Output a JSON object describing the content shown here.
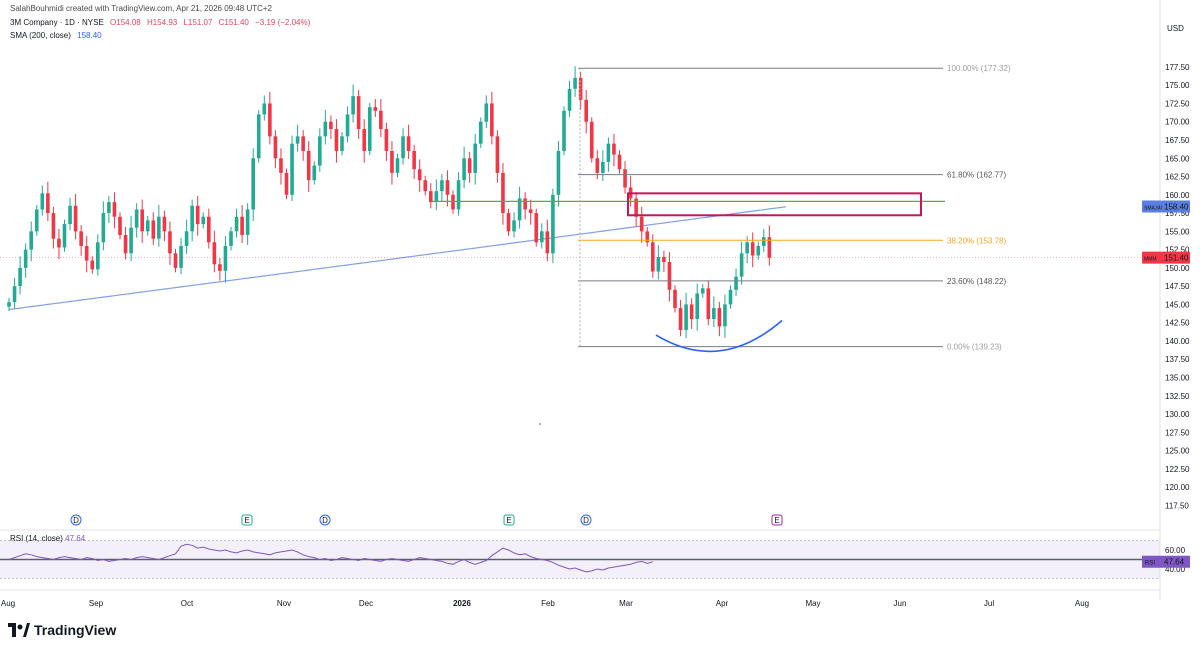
{
  "header": {
    "author_line": "SalahBouhmidi created with TradingView.com, Apr 21, 2026 09:48 UTC+2",
    "symbol": "3M Company · 1D · NYSE",
    "ohlc": {
      "o": "O154.08",
      "h": "H154.93",
      "l": "L151.07",
      "c": "C151.40",
      "chg": "−3.19 (−2.04%)"
    },
    "sma_label": "SMA (200, close)",
    "sma_value": "158.40",
    "rsi_label": "RSI (14, close)",
    "rsi_value": "47.64"
  },
  "brand": {
    "name": "TradingView"
  },
  "colors": {
    "up": "#22ab94",
    "down": "#f23645",
    "sma": "#5b7fde",
    "rsi": "#7e57c2",
    "fib_618": "#787b86",
    "fib_382": "#f5a623",
    "green_level": "#4caf50",
    "zone": "#c2185b"
  },
  "chart_data": {
    "type": "candlestick",
    "currency": "USD",
    "price_axis_ticks": [
      "177.50",
      "175.00",
      "172.50",
      "170.00",
      "167.50",
      "165.00",
      "162.50",
      "160.00",
      "157.50",
      "155.00",
      "152.50",
      "150.00",
      "147.50",
      "145.00",
      "142.50",
      "140.00",
      "137.50",
      "135.00",
      "132.50",
      "130.00",
      "127.50",
      "125.00",
      "122.50",
      "120.00",
      "117.50"
    ],
    "y_range": [
      115.5,
      180.5
    ],
    "time_axis": [
      "Aug",
      "Sep",
      "Oct",
      "Nov",
      "Dec",
      "2026",
      "Feb",
      "Mar",
      "Apr",
      "May",
      "Jun",
      "Jul",
      "Aug"
    ],
    "fib_levels": [
      {
        "label": "100.00% (177.32)",
        "price": 177.32
      },
      {
        "label": "61.80% (162.77)",
        "price": 162.77
      },
      {
        "label": "38.20% (153.78)",
        "price": 153.78
      },
      {
        "label": "23.60% (148.22)",
        "price": 148.22
      },
      {
        "label": "0.00% (139.23)",
        "price": 139.23
      }
    ],
    "last_price": {
      "label": "MMM",
      "value": "151.40"
    },
    "sma_tag": {
      "label": "SMA,MA",
      "value": "158.40"
    },
    "green_level_price": 159.1,
    "supply_zone": {
      "top": 160.2,
      "bottom": 157.2
    },
    "close_path": [
      145.3,
      147.5,
      150,
      152.5,
      155,
      158,
      160.2,
      157.5,
      154,
      152.8,
      156,
      158.5,
      155,
      153,
      151,
      149.8,
      153.5,
      157.5,
      159,
      157,
      154.5,
      152,
      155.5,
      158,
      155,
      156.5,
      154,
      157,
      155,
      152,
      150,
      153,
      155,
      158.5,
      156,
      157,
      153.5,
      150.5,
      149.6,
      153,
      155,
      157,
      154.5,
      158,
      165,
      171,
      172.5,
      168,
      165,
      163,
      160,
      167,
      168,
      166,
      162,
      164,
      168,
      170,
      169,
      166,
      168,
      171,
      173.5,
      169,
      166,
      172,
      171.5,
      169,
      166,
      163,
      165,
      168,
      166,
      163.5,
      162,
      160.5,
      159,
      160.5,
      162,
      160,
      158,
      162,
      165,
      163,
      167,
      170,
      172.5,
      168,
      163,
      157.5,
      155,
      156.5,
      159.5,
      158,
      157.5,
      153.5,
      155,
      152,
      160,
      166,
      171.5,
      174.5,
      176,
      173,
      170,
      165,
      163,
      164.5,
      167,
      165.5,
      163.5,
      161,
      159.5,
      157,
      155,
      153.5,
      149.5,
      151.5,
      150.8,
      147,
      144.5,
      141.5,
      145,
      143,
      146.5,
      147.2,
      143,
      144.5,
      142,
      145,
      147,
      148.8,
      152,
      153.5,
      151.7,
      153,
      154.2,
      151.4
    ],
    "rsi": {
      "levels": {
        "upper": 70,
        "lower": 30,
        "middle": 50
      },
      "ticks": [
        "60.00",
        "40.00"
      ],
      "path": [
        50,
        52,
        54,
        56,
        55,
        53,
        52,
        51,
        50,
        52,
        53,
        52,
        51,
        50,
        52,
        51,
        49,
        50,
        48,
        49,
        50,
        51,
        50,
        52,
        53,
        52,
        51,
        50,
        52,
        54,
        56,
        64,
        66,
        65,
        62,
        63,
        61,
        60,
        59,
        60,
        58,
        57,
        59,
        60,
        58,
        57,
        56,
        55,
        57,
        58,
        59,
        60,
        58,
        55,
        53,
        52,
        50,
        51,
        49,
        50,
        52,
        51,
        50,
        49,
        51,
        50,
        49,
        48,
        50,
        51,
        50,
        49,
        48,
        50,
        52,
        51,
        50,
        49,
        48,
        46,
        45,
        48,
        50,
        47,
        45,
        47,
        49,
        54,
        58,
        62,
        60,
        57,
        55,
        56,
        53,
        51,
        50,
        49,
        47,
        44,
        42,
        40,
        41,
        39,
        37,
        38,
        40,
        39,
        41,
        42,
        43,
        44,
        45,
        47,
        48,
        46,
        47.64
      ]
    },
    "event_markers": [
      "D",
      "E",
      "D",
      "E",
      "D",
      "E"
    ]
  }
}
